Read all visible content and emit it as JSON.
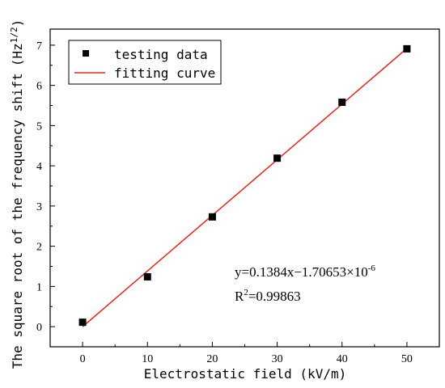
{
  "chart_data": {
    "type": "scatter",
    "xlabel": "Electrostatic field (kV/m)",
    "ylabel": "The square root of the frequency shift",
    "ylabel_unit_base": "(Hz",
    "ylabel_unit_exp": "1/2",
    "ylabel_unit_close": ")",
    "xlim": [
      -5,
      55
    ],
    "ylim": [
      -0.5,
      7.4
    ],
    "x_ticks": [
      0,
      10,
      20,
      30,
      40,
      50
    ],
    "y_ticks": [
      0,
      1,
      2,
      3,
      4,
      5,
      6,
      7
    ],
    "grid": false,
    "legend_position": "top-left",
    "series": [
      {
        "name": "testing data",
        "kind": "points",
        "marker": "square",
        "color": "#000000",
        "x": [
          0,
          10,
          20,
          30,
          40,
          50
        ],
        "y": [
          0.11,
          1.24,
          2.73,
          4.19,
          5.58,
          6.91
        ]
      },
      {
        "name": "fitting curve",
        "kind": "line",
        "color": "#e8261e",
        "x": [
          0,
          50
        ],
        "y": [
          0.0,
          6.92
        ]
      }
    ],
    "annotation": {
      "equation_main": "y=0.1384x−1.70653×10",
      "equation_exp": "-6",
      "r2_prefix": "R",
      "r2_sup": "2",
      "r2_value": "=0.99863"
    }
  }
}
